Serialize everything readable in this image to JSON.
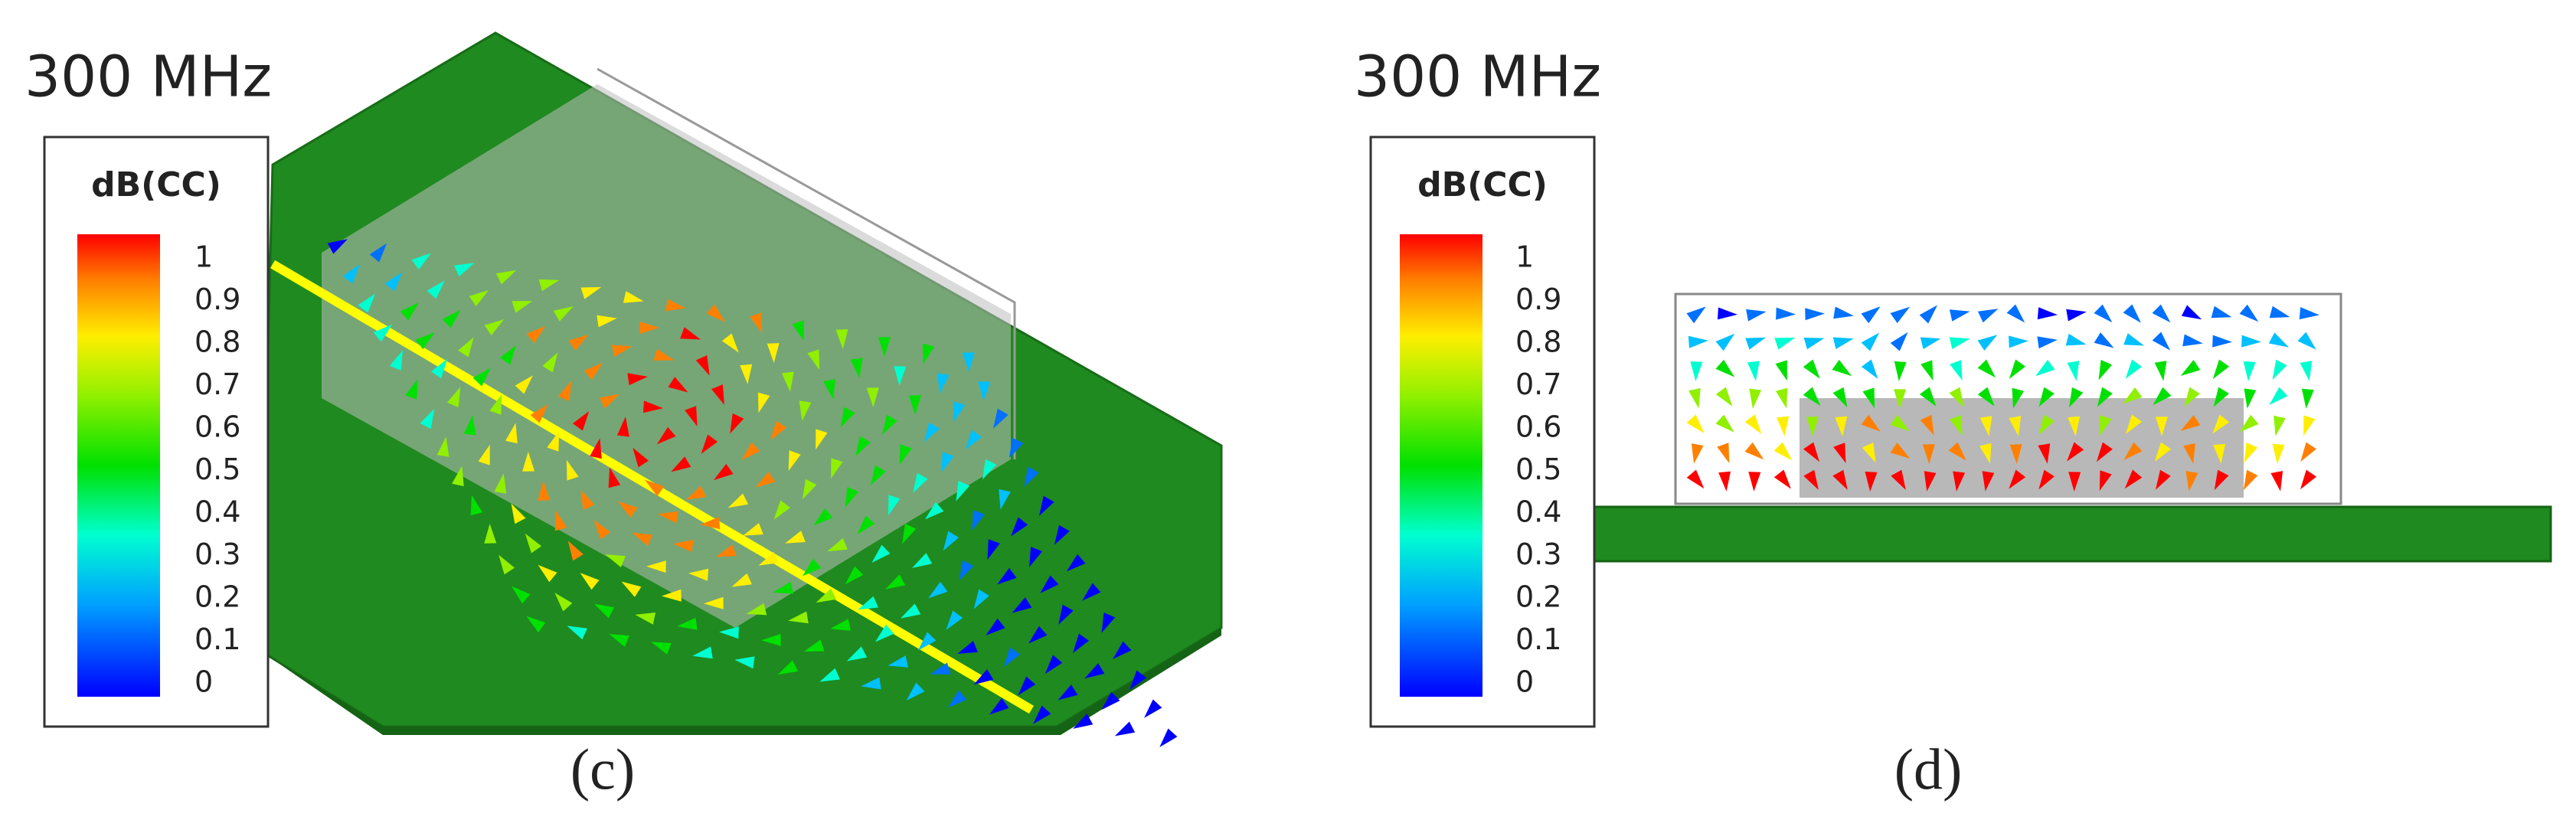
{
  "panels": [
    {
      "title": "300 MHz",
      "colorbar": {
        "title": "dB(CC)",
        "ticks": [
          1,
          0.9,
          0.8,
          0.7,
          0.6,
          0.5,
          0.4,
          0.3,
          0.2,
          0.1,
          0
        ]
      },
      "caption": "(c)"
    },
    {
      "title": "300 MHz",
      "colorbar": {
        "title": "dB(CC)",
        "ticks": [
          1,
          0.9,
          0.8,
          0.7,
          0.6,
          0.5,
          0.4,
          0.3,
          0.2,
          0.1,
          0
        ]
      },
      "caption": "(d)"
    }
  ]
}
